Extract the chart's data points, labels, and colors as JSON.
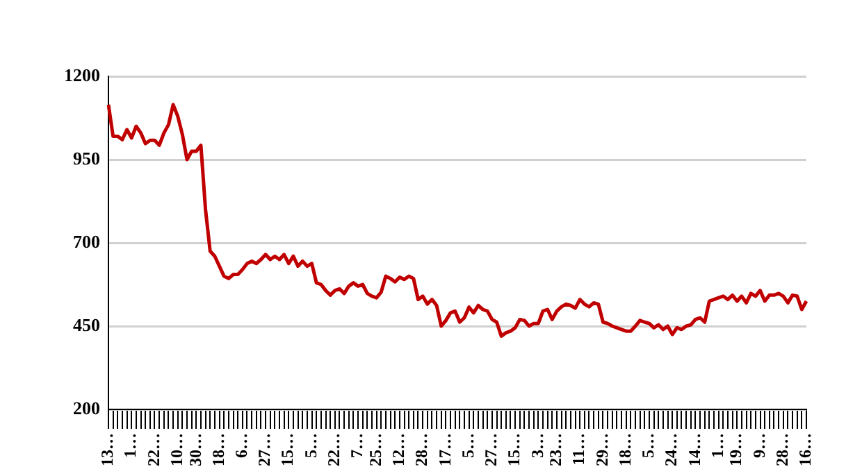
{
  "chart_data": {
    "type": "line",
    "categories": [
      "13…",
      null,
      null,
      null,
      null,
      "1…",
      null,
      null,
      null,
      null,
      "22…",
      null,
      null,
      null,
      null,
      "10…",
      null,
      null,
      null,
      "30…",
      null,
      null,
      null,
      null,
      "18…",
      null,
      null,
      null,
      null,
      "6…",
      null,
      null,
      null,
      null,
      "27…",
      null,
      null,
      null,
      null,
      "15…",
      null,
      null,
      null,
      null,
      "5…",
      null,
      null,
      null,
      null,
      "22…",
      null,
      null,
      null,
      null,
      "7…",
      null,
      null,
      null,
      "25…",
      null,
      null,
      null,
      null,
      "12…",
      null,
      null,
      null,
      null,
      "28…",
      null,
      null,
      null,
      null,
      "17…",
      null,
      null,
      null,
      null,
      "5…",
      null,
      null,
      null,
      null,
      "27…",
      null,
      null,
      null,
      null,
      "15…",
      null,
      null,
      null,
      null,
      "3…",
      null,
      null,
      null,
      "23…",
      null,
      null,
      null,
      null,
      "11…",
      null,
      null,
      null,
      null,
      "29…",
      null,
      null,
      null,
      null,
      "18…",
      null,
      null,
      null,
      null,
      "5…",
      null,
      null,
      null,
      null,
      "24…",
      null,
      null,
      null,
      null,
      "14…",
      null,
      null,
      null,
      null,
      "1…",
      null,
      null,
      null,
      "19…",
      null,
      null,
      null,
      null,
      "9…",
      null,
      null,
      null,
      null,
      "28…",
      null,
      null,
      null,
      null,
      "16…"
    ],
    "values": [
      1115,
      1020,
      1020,
      1010,
      1040,
      1015,
      1050,
      1030,
      998,
      1008,
      1008,
      993,
      1030,
      1055,
      1115,
      1080,
      1025,
      950,
      975,
      975,
      993,
      800,
      675,
      660,
      630,
      600,
      593,
      605,
      605,
      620,
      638,
      645,
      638,
      650,
      665,
      650,
      660,
      650,
      665,
      638,
      660,
      630,
      645,
      630,
      638,
      580,
      575,
      557,
      543,
      557,
      562,
      548,
      570,
      580,
      570,
      575,
      548,
      540,
      535,
      552,
      600,
      593,
      583,
      597,
      590,
      600,
      593,
      530,
      540,
      516,
      530,
      512,
      450,
      467,
      490,
      495,
      462,
      475,
      507,
      490,
      512,
      500,
      495,
      470,
      462,
      420,
      430,
      435,
      445,
      470,
      467,
      450,
      458,
      458,
      495,
      500,
      470,
      495,
      508,
      516,
      512,
      504,
      530,
      516,
      508,
      520,
      516,
      462,
      458,
      450,
      445,
      440,
      435,
      435,
      450,
      467,
      462,
      458,
      445,
      454,
      440,
      450,
      425,
      445,
      440,
      450,
      454,
      470,
      475,
      462,
      525,
      530,
      535,
      540,
      530,
      543,
      525,
      540,
      520,
      548,
      540,
      557,
      525,
      543,
      543,
      548,
      540,
      520,
      543,
      540,
      500,
      525
    ],
    "color": "#c00000",
    "ylim": [
      200,
      1200
    ],
    "yticks": [
      200,
      450,
      700,
      950,
      1200
    ],
    "grid": "y"
  }
}
